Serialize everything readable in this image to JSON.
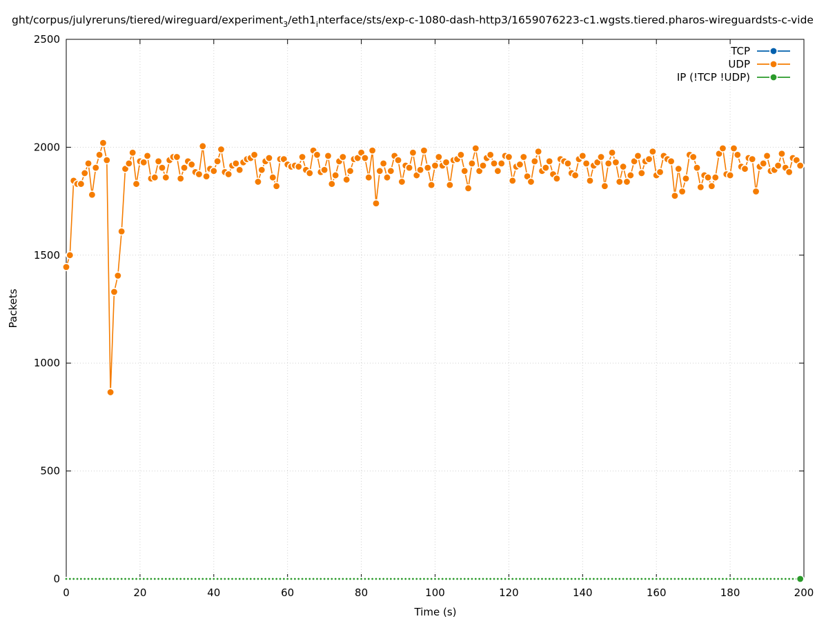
{
  "chart_data": {
    "type": "line",
    "title": "ght/corpus/julyreruns/tiered/wireguard/experiment_3/eth1_interface/sts/exp-c-1080-dash-http3/1659076223-c1.wgsts.tiered.pharos-wireguardsts-c-vide",
    "title_parts": [
      {
        "text": "ght/corpus/julyreruns/tiered/wireguard/experiment",
        "sub": false
      },
      {
        "text": "3",
        "sub": true
      },
      {
        "text": "/eth1",
        "sub": false
      },
      {
        "text": "i",
        "sub": true
      },
      {
        "text": "nterface/sts/exp-c-1080-dash-http3/1659076223-c1.wgsts.tiered.pharos-wireguardsts-c-vide",
        "sub": false
      }
    ],
    "xlabel": "Time (s)",
    "ylabel": "Packets",
    "xlim": [
      0,
      200
    ],
    "ylim": [
      0,
      2500
    ],
    "xticks": [
      0,
      20,
      40,
      60,
      80,
      100,
      120,
      140,
      160,
      180,
      200
    ],
    "yticks": [
      0,
      500,
      1000,
      1500,
      2000,
      2500
    ],
    "grid": true,
    "legend_position": "top-right",
    "series": [
      {
        "name": "TCP",
        "color": "#0060ad",
        "x": [],
        "y": []
      },
      {
        "name": "UDP",
        "color": "#f57c00",
        "x": [
          0,
          1,
          2,
          3,
          4,
          5,
          6,
          7,
          8,
          9,
          10,
          11,
          12,
          13,
          14,
          15,
          16,
          17,
          18,
          19,
          20,
          21,
          22,
          23,
          24,
          25,
          26,
          27,
          28,
          29,
          30,
          31,
          32,
          33,
          34,
          35,
          36,
          37,
          38,
          39,
          40,
          41,
          42,
          43,
          44,
          45,
          46,
          47,
          48,
          49,
          50,
          51,
          52,
          53,
          54,
          55,
          56,
          57,
          58,
          59,
          60,
          61,
          62,
          63,
          64,
          65,
          66,
          67,
          68,
          69,
          70,
          71,
          72,
          73,
          74,
          75,
          76,
          77,
          78,
          79,
          80,
          81,
          82,
          83,
          84,
          85,
          86,
          87,
          88,
          89,
          90,
          91,
          92,
          93,
          94,
          95,
          96,
          97,
          98,
          99,
          100,
          101,
          102,
          103,
          104,
          105,
          106,
          107,
          108,
          109,
          110,
          111,
          112,
          113,
          114,
          115,
          116,
          117,
          118,
          119,
          120,
          121,
          122,
          123,
          124,
          125,
          126,
          127,
          128,
          129,
          130,
          131,
          132,
          133,
          134,
          135,
          136,
          137,
          138,
          139,
          140,
          141,
          142,
          143,
          144,
          145,
          146,
          147,
          148,
          149,
          150,
          151,
          152,
          153,
          154,
          155,
          156,
          157,
          158,
          159,
          160,
          161,
          162,
          163,
          164,
          165,
          166,
          167,
          168,
          169,
          170,
          171,
          172,
          173,
          174,
          175,
          176,
          177,
          178,
          179,
          180,
          181,
          182,
          183,
          184,
          185,
          186,
          187,
          188,
          189,
          190,
          191,
          192,
          193,
          194,
          195,
          196,
          197,
          198,
          199
        ],
        "y": [
          1445,
          1500,
          1845,
          1830,
          1830,
          1880,
          1925,
          1780,
          1905,
          1965,
          2020,
          1940,
          865,
          1330,
          1405,
          1610,
          1900,
          1925,
          1975,
          1830,
          1935,
          1930,
          1960,
          1855,
          1860,
          1935,
          1905,
          1860,
          1940,
          1955,
          1955,
          1855,
          1905,
          1935,
          1920,
          1885,
          1875,
          2005,
          1865,
          1900,
          1890,
          1935,
          1990,
          1885,
          1875,
          1915,
          1925,
          1895,
          1930,
          1945,
          1950,
          1965,
          1840,
          1895,
          1935,
          1950,
          1860,
          1820,
          1945,
          1945,
          1920,
          1910,
          1915,
          1910,
          1955,
          1895,
          1880,
          1985,
          1965,
          1885,
          1895,
          1960,
          1830,
          1870,
          1935,
          1955,
          1850,
          1890,
          1945,
          1950,
          1975,
          1950,
          1860,
          1985,
          1740,
          1890,
          1925,
          1860,
          1890,
          1960,
          1940,
          1840,
          1915,
          1905,
          1975,
          1870,
          1895,
          1985,
          1905,
          1825,
          1915,
          1955,
          1915,
          1930,
          1825,
          1940,
          1945,
          1965,
          1890,
          1810,
          1925,
          1995,
          1890,
          1915,
          1950,
          1965,
          1925,
          1890,
          1925,
          1960,
          1955,
          1845,
          1910,
          1920,
          1955,
          1865,
          1840,
          1935,
          1980,
          1890,
          1905,
          1935,
          1875,
          1855,
          1945,
          1935,
          1925,
          1880,
          1870,
          1945,
          1960,
          1925,
          1845,
          1915,
          1930,
          1955,
          1820,
          1925,
          1975,
          1930,
          1840,
          1910,
          1840,
          1870,
          1935,
          1960,
          1880,
          1935,
          1945,
          1980,
          1870,
          1885,
          1960,
          1945,
          1935,
          1775,
          1900,
          1795,
          1855,
          1965,
          1955,
          1905,
          1815,
          1870,
          1860,
          1820,
          1860,
          1970,
          1995,
          1875,
          1870,
          1995,
          1965,
          1910,
          1900,
          1950,
          1945,
          1795,
          1910,
          1925,
          1960,
          1890,
          1895,
          1915,
          1970,
          1905,
          1885,
          1950,
          1940,
          1915
        ]
      },
      {
        "name": "IP (!TCP  !UDP)",
        "color": "#2a9a2a",
        "x": [
          0,
          1,
          2,
          3,
          4,
          5,
          6,
          7,
          8,
          9,
          10,
          11,
          12,
          13,
          14,
          15,
          16,
          17,
          18,
          19,
          20,
          21,
          22,
          23,
          24,
          25,
          26,
          27,
          28,
          29,
          30,
          31,
          32,
          33,
          34,
          35,
          36,
          37,
          38,
          39,
          40,
          41,
          42,
          43,
          44,
          45,
          46,
          47,
          48,
          49,
          50,
          51,
          52,
          53,
          54,
          55,
          56,
          57,
          58,
          59,
          60,
          61,
          62,
          63,
          64,
          65,
          66,
          67,
          68,
          69,
          70,
          71,
          72,
          73,
          74,
          75,
          76,
          77,
          78,
          79,
          80,
          81,
          82,
          83,
          84,
          85,
          86,
          87,
          88,
          89,
          90,
          91,
          92,
          93,
          94,
          95,
          96,
          97,
          98,
          99,
          100,
          101,
          102,
          103,
          104,
          105,
          106,
          107,
          108,
          109,
          110,
          111,
          112,
          113,
          114,
          115,
          116,
          117,
          118,
          119,
          120,
          121,
          122,
          123,
          124,
          125,
          126,
          127,
          128,
          129,
          130,
          131,
          132,
          133,
          134,
          135,
          136,
          137,
          138,
          139,
          140,
          141,
          142,
          143,
          144,
          145,
          146,
          147,
          148,
          149,
          150,
          151,
          152,
          153,
          154,
          155,
          156,
          157,
          158,
          159,
          160,
          161,
          162,
          163,
          164,
          165,
          166,
          167,
          168,
          169,
          170,
          171,
          172,
          173,
          174,
          175,
          176,
          177,
          178,
          179,
          180,
          181,
          182,
          183,
          184,
          185,
          186,
          187,
          188,
          189,
          190,
          191,
          192,
          193,
          194,
          195,
          196,
          197,
          198,
          199
        ],
        "y": [
          0,
          0,
          0,
          0,
          0,
          0,
          0,
          0,
          0,
          0,
          0,
          0,
          0,
          0,
          0,
          0,
          0,
          0,
          0,
          0,
          0,
          0,
          0,
          0,
          0,
          0,
          0,
          0,
          0,
          0,
          0,
          0,
          0,
          0,
          0,
          0,
          0,
          0,
          0,
          0,
          0,
          0,
          0,
          0,
          0,
          0,
          0,
          0,
          0,
          0,
          0,
          0,
          0,
          0,
          0,
          0,
          0,
          0,
          0,
          0,
          0,
          0,
          0,
          0,
          0,
          0,
          0,
          0,
          0,
          0,
          0,
          0,
          0,
          0,
          0,
          0,
          0,
          0,
          0,
          0,
          0,
          0,
          0,
          0,
          0,
          0,
          0,
          0,
          0,
          0,
          0,
          0,
          0,
          0,
          0,
          0,
          0,
          0,
          0,
          0,
          0,
          0,
          0,
          0,
          0,
          0,
          0,
          0,
          0,
          0,
          0,
          0,
          0,
          0,
          0,
          0,
          0,
          0,
          0,
          0,
          0,
          0,
          0,
          0,
          0,
          0,
          0,
          0,
          0,
          0,
          0,
          0,
          0,
          0,
          0,
          0,
          0,
          0,
          0,
          0,
          0,
          0,
          0,
          0,
          0,
          0,
          0,
          0,
          0,
          0,
          0,
          0,
          0,
          0,
          0,
          0,
          0,
          0,
          0,
          0,
          0,
          0,
          0,
          0,
          0,
          0,
          0,
          0,
          0,
          0,
          0,
          0,
          0,
          0,
          0,
          0,
          0,
          0,
          0,
          0,
          0,
          0,
          0,
          0,
          0,
          0,
          0,
          0,
          0,
          0,
          0,
          0,
          0,
          0,
          0,
          0,
          0,
          0,
          0,
          0
        ]
      }
    ]
  }
}
